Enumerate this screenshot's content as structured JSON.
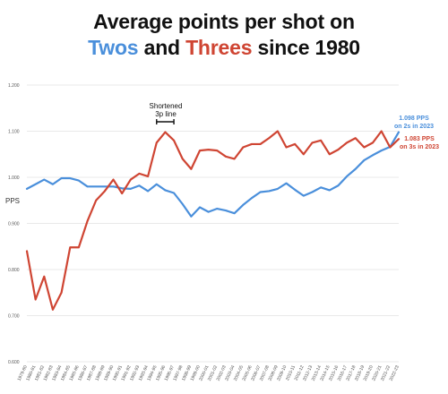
{
  "colors": {
    "twos": "#4a8fdb",
    "threes": "#cf4533",
    "grid": "#e2e2e2",
    "axis_text": "#555555"
  },
  "title": {
    "line1": "Average points per shot on",
    "line2_twos": "Twos",
    "line2_and": " and ",
    "line2_threes": "Threes",
    "line2_rest": " since 1980"
  },
  "chart_data": {
    "type": "line",
    "ylabel": "PPS",
    "ylim": [
      0.6,
      1.2
    ],
    "yticks": [
      "0.600",
      "0.700",
      "0.800",
      "0.900",
      "1.000",
      "1.100",
      "1.200"
    ],
    "grid": true,
    "x": [
      "1979-80",
      "1980-81",
      "1981-82",
      "1982-83",
      "1983-84",
      "1984-85",
      "1985-86",
      "1986-87",
      "1987-88",
      "1988-89",
      "1989-90",
      "1990-91",
      "1991-92",
      "1992-93",
      "1993-94",
      "1994-95",
      "1995-96",
      "1996-97",
      "1997-98",
      "1998-99",
      "1999-00",
      "2000-01",
      "2001-02",
      "2002-03",
      "2003-04",
      "2004-05",
      "2005-06",
      "2006-07",
      "2007-08",
      "2008-09",
      "2009-10",
      "2010-11",
      "2011-12",
      "2012-13",
      "2013-14",
      "2014-15",
      "2015-16",
      "2016-17",
      "2017-18",
      "2018-19",
      "2019-20",
      "2020-21",
      "2021-22",
      "2022-23"
    ],
    "series": [
      {
        "name": "Twos",
        "color": "#4a8fdb",
        "values": [
          0.975,
          0.985,
          0.995,
          0.985,
          0.998,
          0.998,
          0.993,
          0.98,
          0.98,
          0.98,
          0.98,
          0.976,
          0.975,
          0.982,
          0.97,
          0.985,
          0.972,
          0.966,
          0.942,
          0.915,
          0.935,
          0.925,
          0.932,
          0.928,
          0.922,
          0.94,
          0.955,
          0.968,
          0.97,
          0.975,
          0.987,
          0.973,
          0.96,
          0.968,
          0.978,
          0.972,
          0.982,
          1.002,
          1.018,
          1.037,
          1.048,
          1.058,
          1.066,
          1.098
        ]
      },
      {
        "name": "Threes",
        "color": "#cf4533",
        "values": [
          0.84,
          0.735,
          0.785,
          0.713,
          0.75,
          0.848,
          0.848,
          0.905,
          0.95,
          0.97,
          0.995,
          0.965,
          0.995,
          1.008,
          1.002,
          1.075,
          1.098,
          1.08,
          1.04,
          1.018,
          1.058,
          1.06,
          1.058,
          1.045,
          1.04,
          1.065,
          1.072,
          1.072,
          1.085,
          1.1,
          1.065,
          1.072,
          1.05,
          1.075,
          1.08,
          1.05,
          1.06,
          1.075,
          1.085,
          1.065,
          1.075,
          1.1,
          1.065,
          1.083
        ]
      }
    ],
    "annotations": {
      "shortened_line1": "Shortened",
      "shortened_line2": "3p line",
      "shortened_range": [
        "1994-95",
        "1996-97"
      ],
      "twos_label_1": "1.098 PPS",
      "twos_label_2": "on 2s in 2023",
      "threes_label_1": "1.083 PPS",
      "threes_label_2": "on 3s in 2023"
    }
  }
}
